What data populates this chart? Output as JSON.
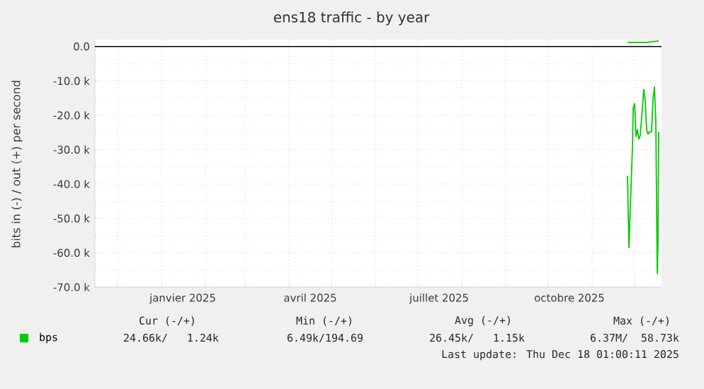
{
  "chart_data": {
    "type": "line",
    "title": "ens18 traffic - by year",
    "ylabel": "bits in (-) / out (+) per second",
    "series": [
      {
        "name": "bps",
        "color": "#00cc00",
        "x": [
          "2025-11-26",
          "2025-11-27",
          "2025-11-28",
          "2025-11-29T12:00",
          "2025-11-30",
          "2025-12-01",
          "2025-12-02",
          "2025-12-03",
          "2025-12-04",
          "2025-12-05",
          "2025-12-06T12:00",
          "2025-12-07T12:00",
          "2025-12-08T12:00",
          "2025-12-09T12:00",
          "2025-12-10T12:00",
          "2025-12-11T12:00",
          "2025-12-13",
          "2025-12-14",
          "2025-12-15",
          "2025-12-16",
          "2025-12-17",
          "2025-12-17T12:00",
          "2025-12-18"
        ],
        "values": [
          -37600,
          -58500,
          -46800,
          -29000,
          -18000,
          -16600,
          -26200,
          -24200,
          -26900,
          -25900,
          -18000,
          -12500,
          -15900,
          -24200,
          -25500,
          -24800,
          -24800,
          -15200,
          -11800,
          -22100,
          -66000,
          -57800,
          -24800
        ]
      },
      {
        "color": "#00cc00",
        "x": [
          "2025-11-26",
          "2025-12-10",
          "2025-12-18"
        ],
        "values": [
          1200,
          1200,
          1600
        ]
      }
    ],
    "xlim": [
      "2024-11-15",
      "2025-12-20"
    ],
    "xticks": [
      {
        "value": "2024-12-01",
        "label": null
      },
      {
        "value": "2025-01-01",
        "label": null
      },
      {
        "value": "2025-01-16",
        "label": "janvier 2025"
      },
      {
        "value": "2025-02-01",
        "label": null
      },
      {
        "value": "2025-03-01",
        "label": null
      },
      {
        "value": "2025-04-01",
        "label": null
      },
      {
        "value": "2025-04-16",
        "label": "avril 2025"
      },
      {
        "value": "2025-05-01",
        "label": null
      },
      {
        "value": "2025-06-01",
        "label": null
      },
      {
        "value": "2025-07-01",
        "label": null
      },
      {
        "value": "2025-07-16",
        "label": "juillet 2025"
      },
      {
        "value": "2025-08-01",
        "label": null
      },
      {
        "value": "2025-09-01",
        "label": null
      },
      {
        "value": "2025-10-01",
        "label": null
      },
      {
        "value": "2025-10-16",
        "label": "octobre 2025"
      },
      {
        "value": "2025-11-01",
        "label": null
      },
      {
        "value": "2025-12-01",
        "label": null
      }
    ],
    "ylim": [
      -70000,
      2000
    ],
    "yticks": [
      {
        "value": -70000,
        "label": "-70.0 k"
      },
      {
        "value": -60000,
        "label": "-60.0 k"
      },
      {
        "value": -50000,
        "label": "-50.0 k"
      },
      {
        "value": -40000,
        "label": "-40.0 k"
      },
      {
        "value": -30000,
        "label": "-30.0 k"
      },
      {
        "value": -20000,
        "label": "-20.0 k"
      },
      {
        "value": -10000,
        "label": "-10.0 k"
      },
      {
        "value": 0,
        "label": "0.0"
      }
    ],
    "grid": true,
    "legend": "bottom",
    "ref_lines": [
      {
        "axis": "y",
        "value": 0,
        "color": "#000000"
      }
    ],
    "annotations": [
      "Cur (-/+)",
      "Min (-/+)",
      "Avg (-/+)",
      "Max (-/+)",
      "24.66k/   1.24k",
      "6.49k/194.69",
      "26.45k/   1.15k",
      "6.37M/  58.73k",
      "Last update: Thu Dec 18 01:00:11 2025"
    ]
  }
}
